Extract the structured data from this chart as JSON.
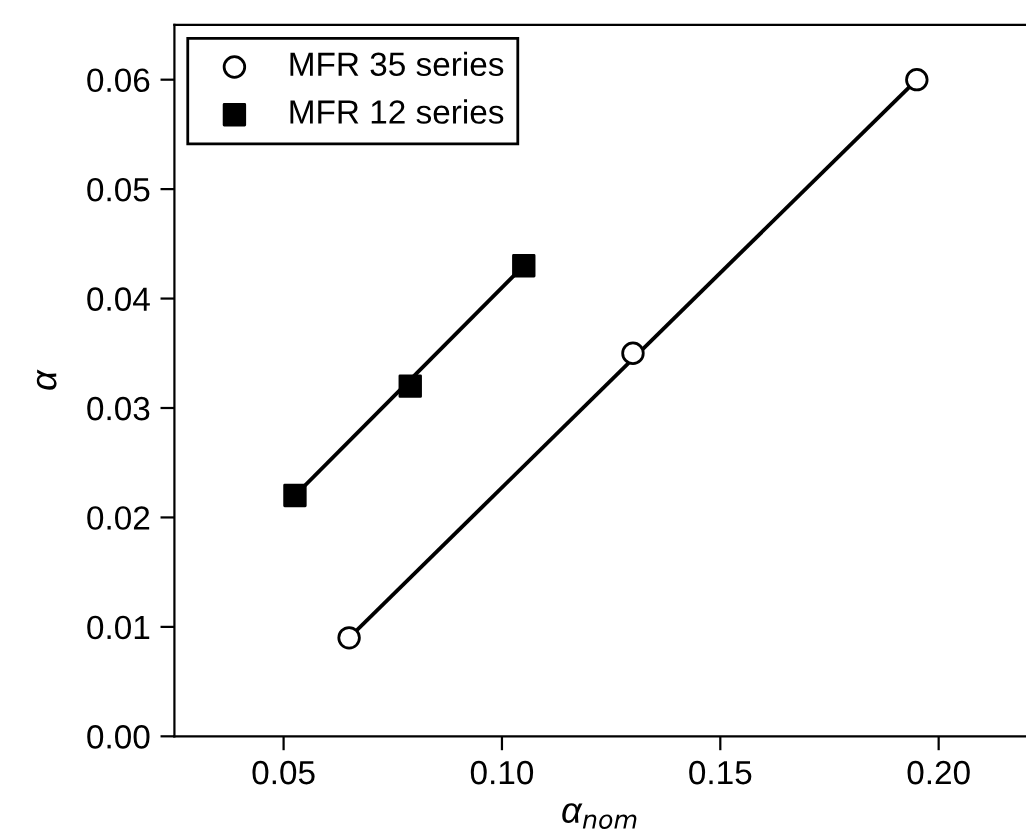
{
  "chart_data": {
    "type": "scatter",
    "xlabel": "α$_{nom}$",
    "ylabel": "α",
    "xlim": [
      0.025,
      0.22
    ],
    "ylim": [
      0,
      0.065
    ],
    "xticks": [
      0.05,
      {
        "value": 0.1,
        "label": "0.10"
      },
      0.15,
      {
        "value": 0.2,
        "label": "0.20"
      }
    ],
    "yticks": [
      {
        "value": 0,
        "label": "0.00"
      },
      0.01,
      0.02,
      0.03,
      0.04,
      0.05,
      0.06
    ],
    "legend": "top left",
    "grid": false,
    "series": [
      {
        "name": "MFR 35 series",
        "marker": "circle",
        "color": "#000000",
        "x": [
          0.065,
          0.13,
          0.195
        ],
        "values": [
          0.009,
          0.035,
          0.06
        ]
      },
      {
        "name": "MFR 12 series",
        "marker": "square",
        "color": "#000000",
        "x": [
          0.0526,
          0.079,
          0.105
        ],
        "values": [
          0.022,
          0.032,
          0.043
        ]
      },
      {
        "type": "line",
        "color": "#000000",
        "x": [
          0.065,
          0.195
        ],
        "values": [
          0.009,
          0.06
        ]
      },
      {
        "type": "line",
        "color": "#000000",
        "x": [
          0.0526,
          0.105
        ],
        "values": [
          0.022,
          0.043
        ]
      }
    ]
  }
}
